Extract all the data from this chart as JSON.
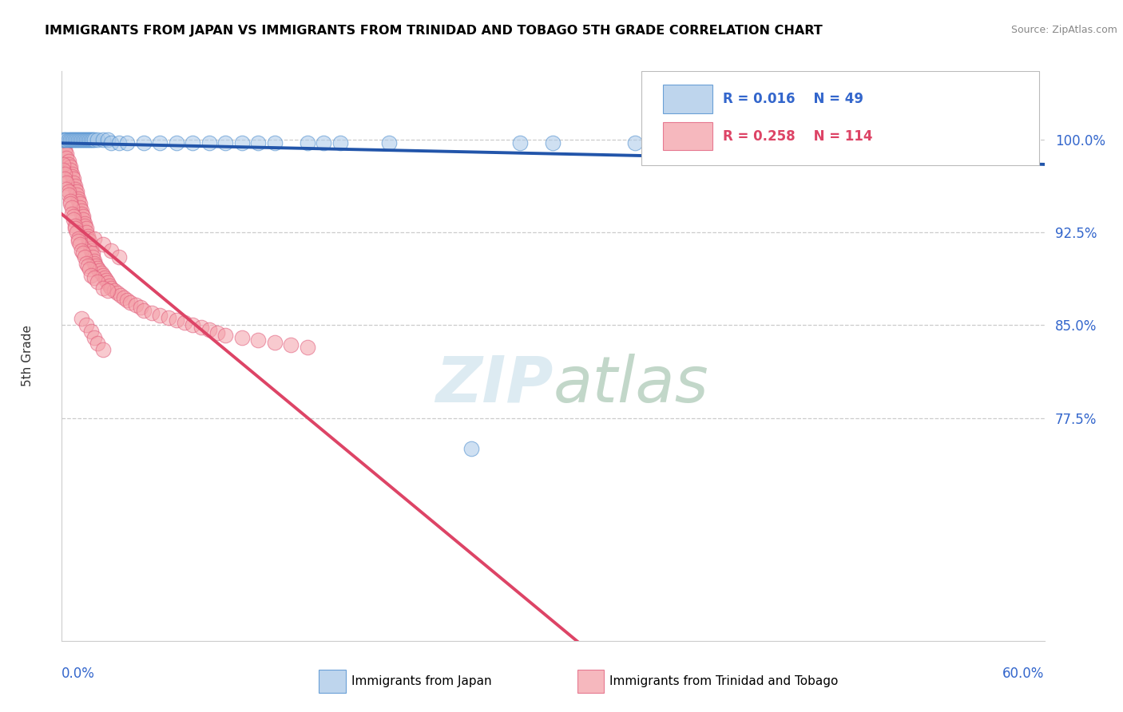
{
  "title": "IMMIGRANTS FROM JAPAN VS IMMIGRANTS FROM TRINIDAD AND TOBAGO 5TH GRADE CORRELATION CHART",
  "source": "Source: ZipAtlas.com",
  "ylabel": "5th Grade",
  "y_ticks": [
    0.775,
    0.85,
    0.925,
    1.0
  ],
  "y_tick_labels": [
    "77.5%",
    "85.0%",
    "92.5%",
    "100.0%"
  ],
  "x_range": [
    0.0,
    0.6
  ],
  "y_range": [
    0.595,
    1.055
  ],
  "legend_r_japan": "R = 0.016",
  "legend_n_japan": "N = 49",
  "legend_r_trinidad": "R = 0.258",
  "legend_n_trinidad": "N = 114",
  "blue_fill": "#A8C8E8",
  "blue_edge": "#4488CC",
  "pink_fill": "#F4A0A8",
  "pink_edge": "#E05878",
  "blue_line_color": "#2255AA",
  "pink_line_color": "#DD4466",
  "japan_x": [
    0.001,
    0.002,
    0.003,
    0.004,
    0.005,
    0.006,
    0.007,
    0.008,
    0.009,
    0.01,
    0.011,
    0.012,
    0.013,
    0.014,
    0.015,
    0.016,
    0.017,
    0.018,
    0.019,
    0.02,
    0.022,
    0.025,
    0.028,
    0.03,
    0.035,
    0.04,
    0.05,
    0.06,
    0.07,
    0.08,
    0.09,
    0.1,
    0.11,
    0.12,
    0.13,
    0.15,
    0.16,
    0.17,
    0.2,
    0.25,
    0.28,
    0.3,
    0.35,
    0.4,
    0.45,
    0.5,
    0.53,
    0.56,
    0.59
  ],
  "japan_y": [
    1.0,
    1.0,
    1.0,
    1.0,
    1.0,
    1.0,
    1.0,
    1.0,
    1.0,
    1.0,
    1.0,
    1.0,
    1.0,
    1.0,
    1.0,
    1.0,
    1.0,
    1.0,
    1.0,
    1.0,
    1.0,
    1.0,
    1.0,
    0.997,
    0.997,
    0.997,
    0.997,
    0.997,
    0.997,
    0.997,
    0.997,
    0.997,
    0.997,
    0.997,
    0.997,
    0.997,
    0.997,
    0.997,
    0.997,
    0.75,
    0.997,
    0.997,
    0.997,
    0.997,
    0.997,
    0.997,
    0.997,
    0.997,
    0.997
  ],
  "trinidad_x": [
    0.001,
    0.002,
    0.002,
    0.003,
    0.003,
    0.004,
    0.004,
    0.005,
    0.005,
    0.006,
    0.006,
    0.007,
    0.007,
    0.008,
    0.008,
    0.009,
    0.009,
    0.01,
    0.01,
    0.011,
    0.011,
    0.012,
    0.012,
    0.013,
    0.013,
    0.014,
    0.014,
    0.015,
    0.015,
    0.016,
    0.016,
    0.017,
    0.017,
    0.018,
    0.018,
    0.019,
    0.019,
    0.02,
    0.02,
    0.021,
    0.022,
    0.023,
    0.024,
    0.025,
    0.026,
    0.027,
    0.028,
    0.029,
    0.03,
    0.032,
    0.034,
    0.036,
    0.038,
    0.04,
    0.042,
    0.045,
    0.048,
    0.05,
    0.055,
    0.06,
    0.065,
    0.07,
    0.075,
    0.08,
    0.085,
    0.09,
    0.095,
    0.1,
    0.11,
    0.12,
    0.13,
    0.14,
    0.15,
    0.001,
    0.001,
    0.002,
    0.002,
    0.003,
    0.003,
    0.004,
    0.004,
    0.005,
    0.005,
    0.006,
    0.006,
    0.007,
    0.007,
    0.008,
    0.008,
    0.009,
    0.01,
    0.01,
    0.011,
    0.012,
    0.013,
    0.014,
    0.015,
    0.016,
    0.017,
    0.018,
    0.02,
    0.022,
    0.025,
    0.028,
    0.02,
    0.025,
    0.03,
    0.035,
    0.012,
    0.015,
    0.018,
    0.02,
    0.022,
    0.025
  ],
  "trinidad_y": [
    0.995,
    0.992,
    0.99,
    0.988,
    0.985,
    0.982,
    0.98,
    0.978,
    0.975,
    0.972,
    0.97,
    0.968,
    0.965,
    0.962,
    0.96,
    0.958,
    0.955,
    0.952,
    0.95,
    0.948,
    0.945,
    0.942,
    0.94,
    0.938,
    0.935,
    0.932,
    0.93,
    0.928,
    0.925,
    0.922,
    0.92,
    0.918,
    0.915,
    0.912,
    0.91,
    0.908,
    0.905,
    0.902,
    0.9,
    0.898,
    0.896,
    0.894,
    0.892,
    0.89,
    0.888,
    0.886,
    0.884,
    0.882,
    0.88,
    0.878,
    0.876,
    0.874,
    0.872,
    0.87,
    0.868,
    0.866,
    0.864,
    0.862,
    0.86,
    0.858,
    0.856,
    0.854,
    0.852,
    0.85,
    0.848,
    0.846,
    0.844,
    0.842,
    0.84,
    0.838,
    0.836,
    0.834,
    0.832,
    0.98,
    0.975,
    0.972,
    0.968,
    0.965,
    0.96,
    0.958,
    0.955,
    0.95,
    0.948,
    0.945,
    0.94,
    0.938,
    0.935,
    0.93,
    0.928,
    0.925,
    0.92,
    0.918,
    0.915,
    0.91,
    0.908,
    0.905,
    0.9,
    0.898,
    0.895,
    0.89,
    0.888,
    0.885,
    0.88,
    0.878,
    0.92,
    0.915,
    0.91,
    0.905,
    0.855,
    0.85,
    0.845,
    0.84,
    0.835,
    0.83
  ],
  "grid_color": "#CCCCCC",
  "tick_label_color": "#3366CC"
}
